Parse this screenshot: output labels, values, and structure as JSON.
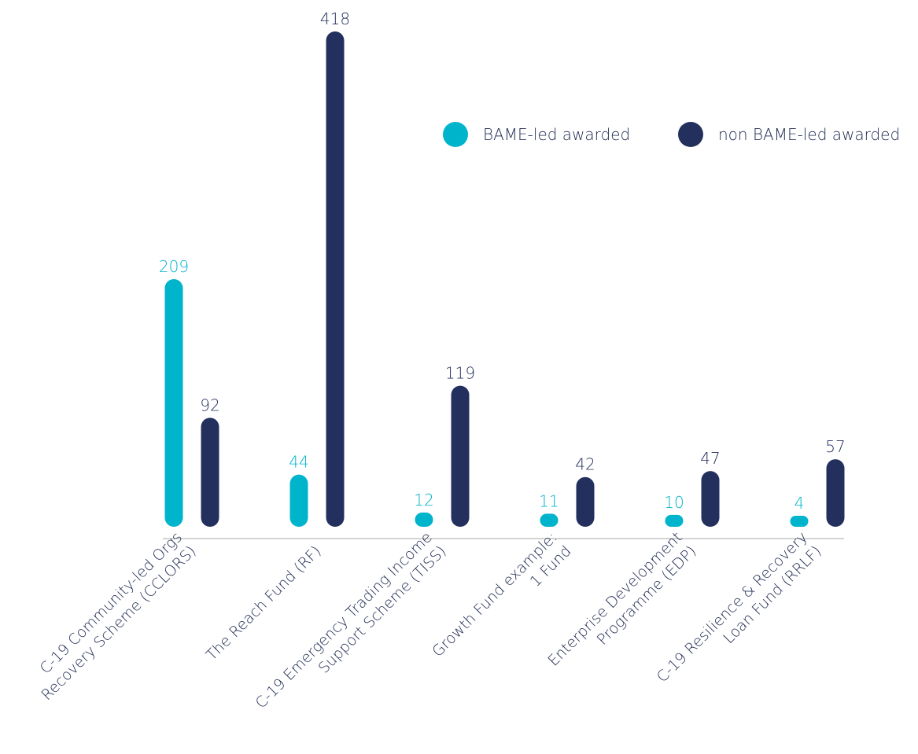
{
  "chart_data": {
    "type": "bar",
    "categories": [
      [
        "C-19 Community-led Orgs",
        "Recovery Scheme (CCLORS)"
      ],
      [
        "The Reach Fund (RF)"
      ],
      [
        "C-19 Emergency Trading Income",
        "Support Scheme (TISS)"
      ],
      [
        "Growth Fund example:",
        "1 Fund"
      ],
      [
        "Enterprise Development",
        "Programme (EDP)"
      ],
      [
        "C-19 Resilience & Recovery",
        "Loan Fund (RRLF)"
      ]
    ],
    "series": [
      {
        "name": "BAME-led awarded",
        "color": "#00b4cc",
        "values": [
          209,
          44,
          12,
          11,
          10,
          4
        ]
      },
      {
        "name": "non BAME-led awarded",
        "color": "#23305e",
        "values": [
          92,
          418,
          119,
          42,
          47,
          57
        ]
      }
    ],
    "ylim": [
      0,
      418
    ],
    "grid": false,
    "legend_position": "top-right",
    "axis_color": "#aaaaaa"
  }
}
